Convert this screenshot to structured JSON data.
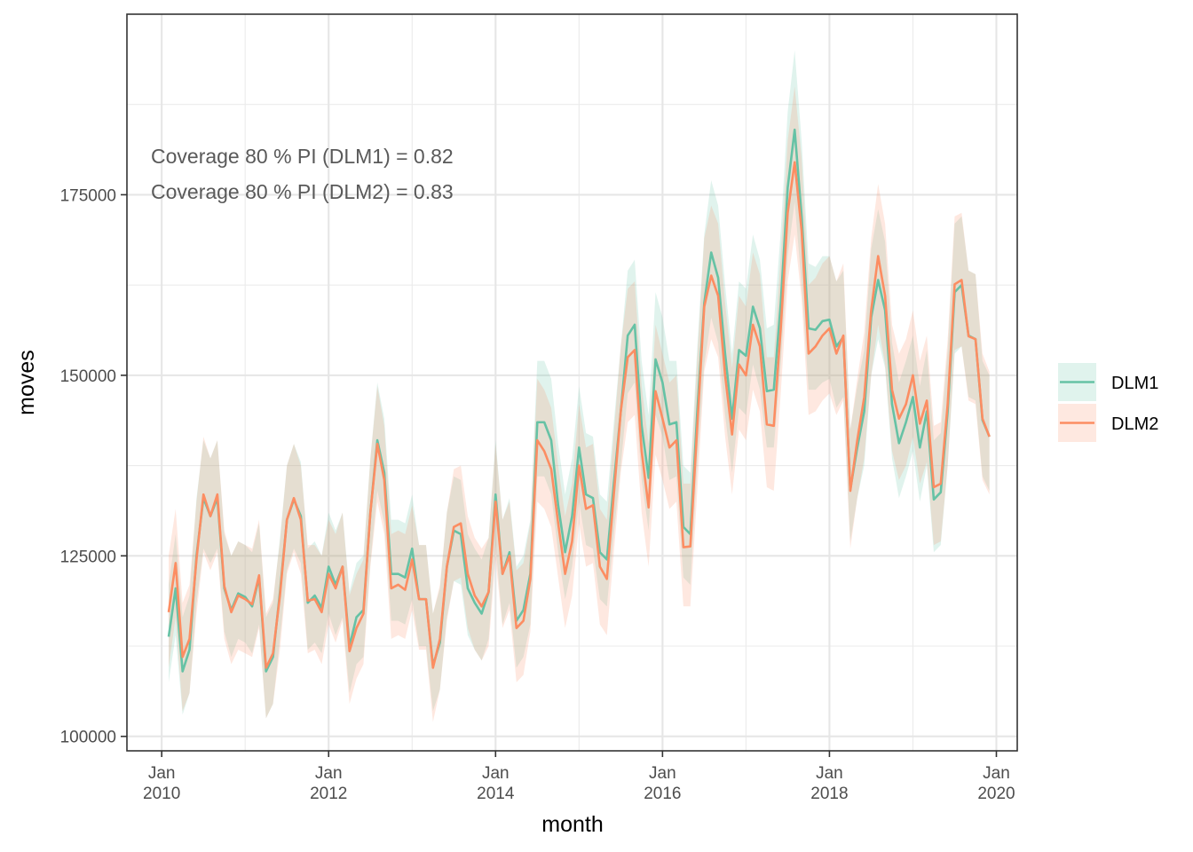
{
  "chart_data": {
    "type": "line",
    "xlabel": "month",
    "ylabel": "moves",
    "x_ticks": [
      {
        "date": "2010-01",
        "label": [
          "Jan",
          "2010"
        ]
      },
      {
        "date": "2012-01",
        "label": [
          "Jan",
          "2012"
        ]
      },
      {
        "date": "2014-01",
        "label": [
          "Jan",
          "2014"
        ]
      },
      {
        "date": "2016-01",
        "label": [
          "Jan",
          "2016"
        ]
      },
      {
        "date": "2018-01",
        "label": [
          "Jan",
          "2018"
        ]
      },
      {
        "date": "2020-01",
        "label": [
          "Jan",
          "2020"
        ]
      }
    ],
    "xlim": [
      "2009-08",
      "2020-04"
    ],
    "y_ticks": [
      100000,
      125000,
      150000,
      175000
    ],
    "ylim": [
      98000,
      200000
    ],
    "grid": true,
    "legend_position": "right",
    "annotations": [
      "Coverage 80 % PI (DLM1) = 0.82",
      "Coverage 80 % PI (DLM2) = 0.83"
    ],
    "start_month": "2010-02",
    "series": [
      {
        "name": "DLM1",
        "color": "#66c2a5",
        "values": [
          113800,
          120500,
          109000,
          112000,
          125000,
          133000,
          130500,
          133000,
          120500,
          117500,
          119800,
          119300,
          118000,
          122000,
          109000,
          111000,
          120000,
          130000,
          132800,
          130500,
          118500,
          119500,
          117800,
          123500,
          121000,
          123500,
          112500,
          116500,
          117500,
          131000,
          141000,
          136500,
          122500,
          122500,
          122000,
          126000,
          119000,
          119000,
          109800,
          113000,
          123500,
          128500,
          128000,
          120500,
          118500,
          117000,
          120000,
          133500,
          122500,
          125500,
          116000,
          117500,
          122500,
          143500,
          143500,
          141000,
          132000,
          125500,
          130500,
          140000,
          133500,
          133000,
          125500,
          124500,
          135000,
          145000,
          155500,
          157000,
          143000,
          135800,
          152200,
          149000,
          143200,
          143500,
          129000,
          128000,
          145000,
          160000,
          167000,
          163500,
          153000,
          144000,
          153500,
          152700,
          159500,
          156500,
          147800,
          148000,
          160000,
          176000,
          184000,
          172000,
          156500,
          156300,
          157500,
          157700,
          154000,
          155300,
          134200,
          140000,
          145000,
          158000,
          163200,
          159000,
          146000,
          140600,
          143500,
          147000,
          140000,
          145000,
          132800,
          133800,
          145000,
          161500,
          162500,
          155500,
          155000,
          143800,
          141500
        ],
        "upper": [
          121000,
          128000,
          116500,
          119500,
          133000,
          141000,
          138500,
          141000,
          128000,
          125000,
          127000,
          126500,
          125500,
          129500,
          116500,
          118500,
          127500,
          137500,
          140500,
          138000,
          126000,
          127000,
          125000,
          131000,
          128500,
          131000,
          120000,
          124000,
          125000,
          138500,
          149000,
          144000,
          130000,
          130000,
          129500,
          133500,
          126500,
          126500,
          117000,
          120500,
          131000,
          136000,
          135500,
          128000,
          126000,
          124500,
          127500,
          141000,
          130000,
          133000,
          123500,
          125000,
          130000,
          152000,
          152000,
          149500,
          140500,
          133500,
          138500,
          148500,
          142000,
          141500,
          133500,
          132500,
          143500,
          154000,
          164500,
          166000,
          152000,
          144500,
          161500,
          158000,
          152000,
          152000,
          137500,
          136500,
          154000,
          169500,
          177000,
          173500,
          162500,
          153000,
          163000,
          162000,
          169500,
          166000,
          156500,
          157000,
          170000,
          186500,
          195000,
          182500,
          165500,
          165000,
          166500,
          166500,
          163000,
          164500,
          142500,
          148500,
          153500,
          167500,
          173000,
          168500,
          154500,
          149000,
          152000,
          155500,
          148500,
          153500,
          141000,
          142000,
          153500,
          171000,
          172000,
          164500,
          164000,
          152000,
          150000
        ],
        "lower": [
          107500,
          114000,
          103000,
          106000,
          118500,
          126000,
          124000,
          126000,
          114500,
          111000,
          113500,
          113000,
          111500,
          115500,
          102500,
          104500,
          113500,
          123000,
          126000,
          124000,
          112000,
          113000,
          111500,
          117000,
          114000,
          116500,
          106000,
          110000,
          111000,
          124000,
          134000,
          129500,
          116000,
          116000,
          115500,
          119000,
          112500,
          112500,
          103500,
          106500,
          116500,
          121500,
          121000,
          114000,
          112000,
          110500,
          113500,
          126500,
          115500,
          118500,
          109500,
          111000,
          115500,
          136000,
          136000,
          133500,
          125500,
          119000,
          123500,
          132500,
          126500,
          126000,
          119000,
          118000,
          128000,
          137500,
          147500,
          149000,
          135500,
          128500,
          144500,
          141500,
          135500,
          136000,
          122000,
          121000,
          137500,
          151500,
          158000,
          154500,
          144500,
          136500,
          145500,
          144500,
          151500,
          148000,
          140000,
          140000,
          151500,
          166500,
          174000,
          162500,
          148000,
          148000,
          149000,
          149500,
          145500,
          147000,
          127000,
          133000,
          137500,
          150000,
          155000,
          151000,
          138500,
          133000,
          136000,
          139500,
          132500,
          137500,
          125500,
          126500,
          137500,
          153000,
          154000,
          147000,
          146500,
          136000,
          134000
        ]
      },
      {
        "name": "DLM2",
        "color": "#fc8d62",
        "values": [
          117200,
          124000,
          111000,
          113500,
          124500,
          133500,
          130500,
          133500,
          120800,
          117200,
          119500,
          119000,
          118300,
          122300,
          109500,
          111500,
          119500,
          130000,
          133000,
          130000,
          118800,
          119000,
          117200,
          122500,
          120500,
          123500,
          111800,
          115000,
          117000,
          131000,
          140500,
          135500,
          120500,
          121000,
          120300,
          124500,
          119000,
          119000,
          109500,
          113500,
          123500,
          129000,
          129500,
          122500,
          119500,
          118000,
          120000,
          132500,
          122500,
          125000,
          115000,
          116000,
          121800,
          141000,
          139500,
          137000,
          129500,
          122500,
          127000,
          137500,
          131500,
          132000,
          123500,
          121800,
          133500,
          145000,
          152500,
          153500,
          139500,
          131700,
          147800,
          144000,
          140000,
          141000,
          126200,
          126300,
          143000,
          159500,
          163800,
          161000,
          150000,
          141800,
          151500,
          150000,
          157000,
          154000,
          143200,
          143000,
          156500,
          172500,
          179500,
          170000,
          153000,
          154000,
          155500,
          156500,
          153000,
          155500,
          134000,
          141000,
          147000,
          159000,
          166500,
          161000,
          148000,
          144000,
          146000,
          150000,
          143300,
          146500,
          134500,
          135000,
          146000,
          162600,
          163200,
          155400,
          155000,
          144000,
          141500
        ],
        "upper": [
          125000,
          131500,
          118500,
          121000,
          132500,
          141500,
          138500,
          141000,
          128500,
          125000,
          127000,
          126500,
          126000,
          130000,
          117000,
          119000,
          127000,
          137500,
          140500,
          137500,
          126500,
          126500,
          125000,
          130000,
          128000,
          131000,
          119500,
          122500,
          124500,
          138500,
          148500,
          143000,
          128000,
          128500,
          128000,
          132000,
          126500,
          126500,
          117000,
          121000,
          131000,
          137000,
          137500,
          130500,
          127500,
          126000,
          127500,
          140500,
          130000,
          132500,
          123000,
          124000,
          129500,
          149500,
          148000,
          145500,
          137500,
          130500,
          135000,
          146000,
          140000,
          140500,
          131500,
          130000,
          142000,
          154000,
          162000,
          163000,
          148500,
          140500,
          157000,
          153000,
          149000,
          150000,
          135000,
          135000,
          152500,
          169000,
          173500,
          171000,
          160000,
          151000,
          161000,
          159500,
          167000,
          164000,
          152500,
          152500,
          166500,
          182500,
          190000,
          180000,
          162500,
          163500,
          165500,
          166500,
          163000,
          165500,
          142500,
          149500,
          156000,
          169000,
          176500,
          171000,
          157000,
          153000,
          155000,
          159000,
          152000,
          155500,
          143000,
          143500,
          155000,
          172000,
          172500,
          164500,
          164000,
          153000,
          150500
        ],
        "lower": [
          109500,
          116500,
          103500,
          106000,
          117000,
          125500,
          123000,
          125500,
          113500,
          110000,
          112000,
          111500,
          111000,
          115000,
          102500,
          104500,
          112000,
          122500,
          125500,
          122500,
          111500,
          112000,
          110000,
          115500,
          113000,
          116000,
          104500,
          108000,
          110000,
          123500,
          132500,
          128000,
          113500,
          114000,
          113500,
          117500,
          112000,
          112000,
          102000,
          106500,
          116000,
          121500,
          122000,
          115000,
          112000,
          110500,
          112500,
          124500,
          115000,
          117500,
          107500,
          108500,
          114500,
          132500,
          131500,
          129000,
          122000,
          115000,
          119500,
          129500,
          123500,
          124000,
          115500,
          114000,
          125500,
          136500,
          143500,
          144500,
          131000,
          123500,
          139000,
          135500,
          131500,
          132500,
          118000,
          118000,
          134000,
          150500,
          155000,
          152500,
          141500,
          133500,
          142500,
          141000,
          148000,
          145000,
          134500,
          134000,
          147500,
          163000,
          169500,
          160500,
          144500,
          145000,
          146500,
          147500,
          144500,
          146500,
          126000,
          133000,
          138500,
          150000,
          157000,
          151500,
          139500,
          135500,
          137500,
          141500,
          135000,
          138000,
          126500,
          127000,
          137500,
          153500,
          154000,
          146500,
          146000,
          135500,
          133500
        ]
      }
    ]
  }
}
